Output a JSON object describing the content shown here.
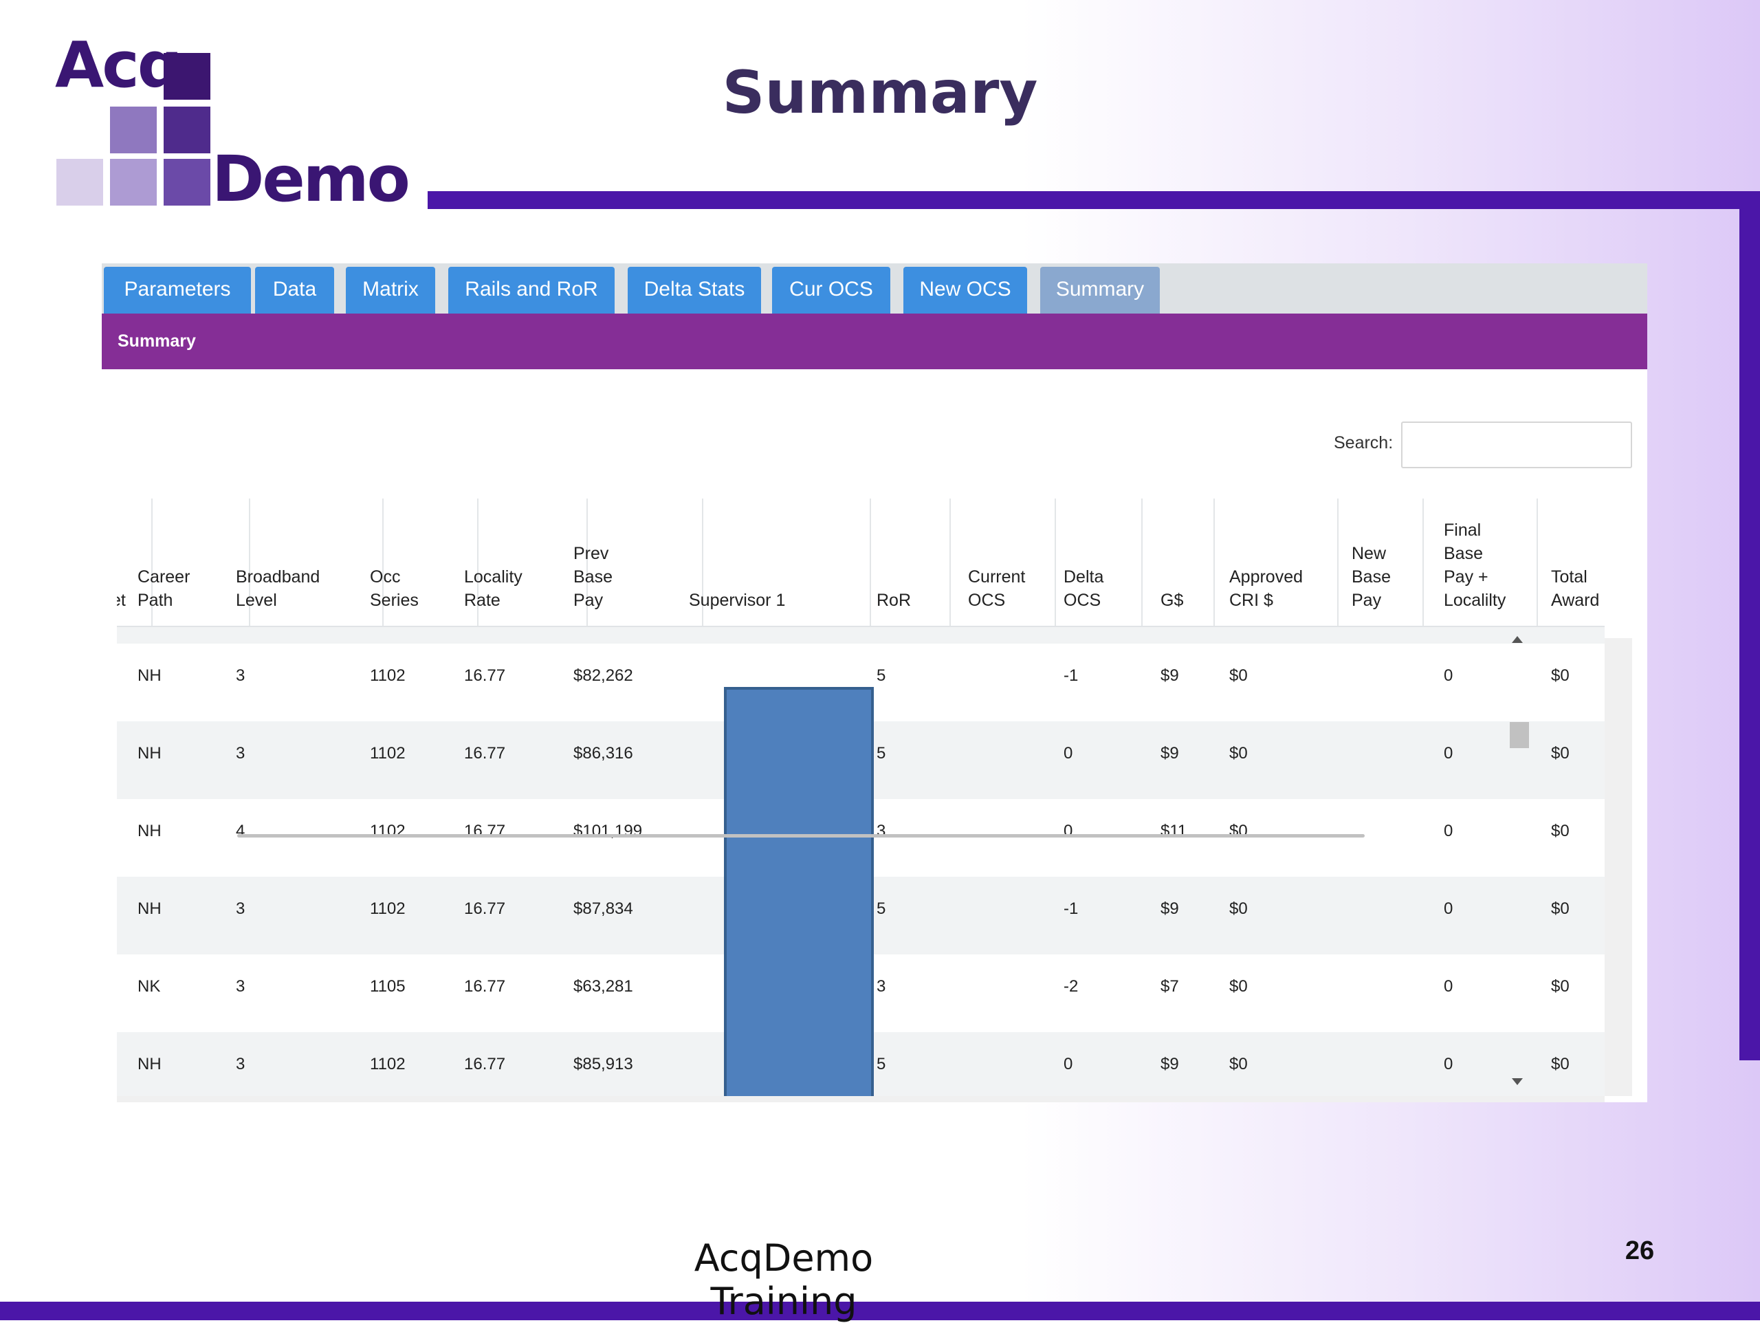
{
  "slide": {
    "title": "Summary",
    "footer": "AcqDemo Training",
    "page_number": "26",
    "logo": {
      "line1": "Acq",
      "line2": "Demo"
    },
    "colors": {
      "brand": "#4b16a8",
      "header_purple": "#852e96",
      "tab_blue": "#3d8fe0",
      "tab_active": "#8aa8cf"
    }
  },
  "app": {
    "tabs": [
      {
        "label": "Parameters"
      },
      {
        "label": "Data"
      },
      {
        "label": "Matrix"
      },
      {
        "label": "Rails and RoR"
      },
      {
        "label": "Delta Stats"
      },
      {
        "label": "Cur OCS"
      },
      {
        "label": "New OCS"
      },
      {
        "label": "Summary",
        "active": true
      }
    ],
    "section_title": "Summary",
    "search": {
      "label": "Search:",
      "value": "",
      "placeholder": ""
    },
    "table": {
      "headers": [
        "et",
        "Career\nPath",
        "Broadband\nLevel",
        "Occ\nSeries",
        "Locality\nRate",
        "Prev\nBase\nPay",
        "Supervisor 1",
        "RoR",
        "Current\nOCS",
        "Delta\nOCS",
        "G$",
        "Approved\nCRI $",
        "New\nBase\nPay",
        "Final\nBase\nPay +\nLocalilty",
        "Total\nAward"
      ],
      "rows": [
        [
          "",
          "NH",
          "3",
          "1102",
          "16.77",
          "$82,262",
          "",
          "5",
          "",
          "-1",
          "$9",
          "$0",
          "",
          "0",
          "$0"
        ],
        [
          "",
          "NH",
          "3",
          "1102",
          "16.77",
          "$86,316",
          "",
          "5",
          "",
          "0",
          "$9",
          "$0",
          "",
          "0",
          "$0"
        ],
        [
          "",
          "NH",
          "4",
          "1102",
          "16.77",
          "$101,199",
          "",
          "3",
          "",
          "0",
          "$11",
          "$0",
          "",
          "0",
          "$0"
        ],
        [
          "",
          "NH",
          "3",
          "1102",
          "16.77",
          "$87,834",
          "",
          "5",
          "",
          "-1",
          "$9",
          "$0",
          "",
          "0",
          "$0"
        ],
        [
          "",
          "NK",
          "3",
          "1105",
          "16.77",
          "$63,281",
          "",
          "3",
          "",
          "-2",
          "$7",
          "$0",
          "",
          "0",
          "$0"
        ],
        [
          "",
          "NH",
          "3",
          "1102",
          "16.77",
          "$85,913",
          "",
          "5",
          "",
          "0",
          "$9",
          "$0",
          "",
          "0",
          "$0"
        ]
      ]
    }
  }
}
